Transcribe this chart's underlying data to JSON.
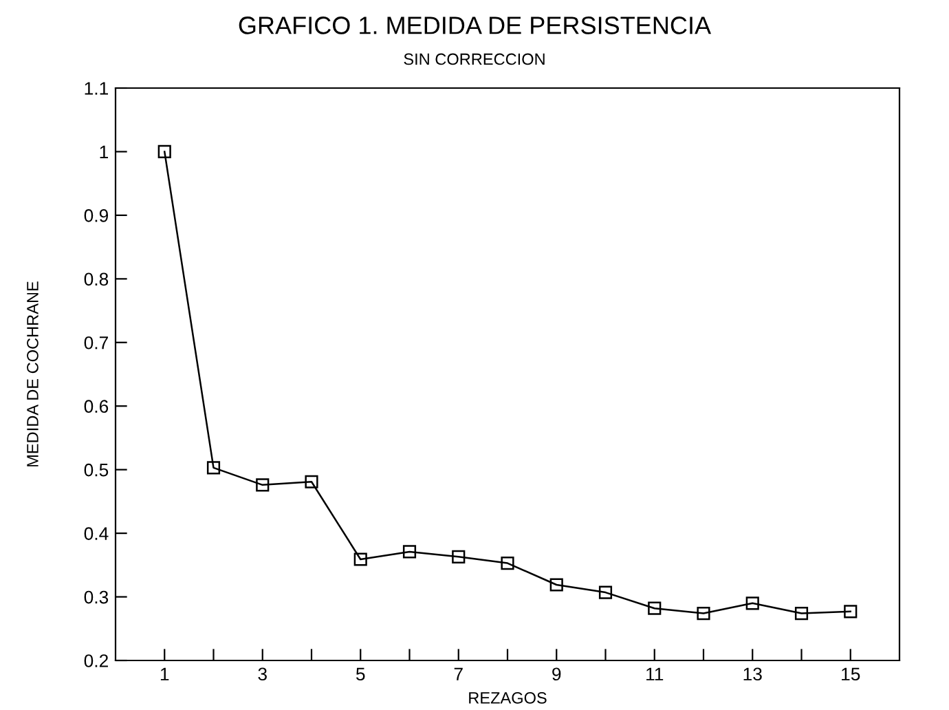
{
  "chart_data": {
    "type": "line",
    "title": "GRAFICO 1. MEDIDA DE PERSISTENCIA",
    "subtitle": "SIN CORRECCION",
    "xlabel": "REZAGOS",
    "ylabel": "MEDIDA DE COCHRANE",
    "x": [
      1,
      2,
      3,
      4,
      5,
      6,
      7,
      8,
      9,
      10,
      11,
      12,
      13,
      14,
      15
    ],
    "series": [
      {
        "color": "#000000",
        "values": [
          1.0,
          0.503,
          0.476,
          0.481,
          0.359,
          0.371,
          0.363,
          0.353,
          0.319,
          0.307,
          0.282,
          0.274,
          0.29,
          0.274,
          0.277
        ]
      }
    ],
    "xlim": [
      0,
      16
    ],
    "xticks": [
      1,
      {
        "value": 2,
        "label": null
      },
      3,
      {
        "value": 4,
        "label": null
      },
      5,
      {
        "value": 6,
        "label": null
      },
      7,
      {
        "value": 8,
        "label": null
      },
      9,
      {
        "value": 10,
        "label": null
      },
      11,
      {
        "value": 12,
        "label": null
      },
      13,
      {
        "value": 14,
        "label": null
      },
      15
    ],
    "ylim": [
      0.2,
      1.1
    ],
    "yticks": [
      0.2,
      0.3,
      0.4,
      0.5,
      0.6,
      0.7,
      0.8,
      0.9,
      1,
      1.1
    ],
    "grid": false,
    "marker": "square",
    "line_style": "solid"
  }
}
